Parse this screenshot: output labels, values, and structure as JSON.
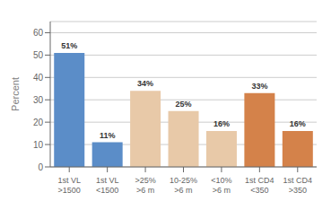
{
  "chart_data": {
    "type": "bar",
    "ylabel": "Percent",
    "categories": [
      "1st VL\n>1500",
      "1st VL\n<1500",
      ">25%\n>6 m",
      "10-25%\n>6 m",
      "<10%\n>6 m",
      "1st CD4\n<350",
      "1st CD4\n>350"
    ],
    "values": [
      51,
      11,
      34,
      25,
      16,
      33,
      16
    ],
    "value_labels": [
      "51%",
      "11%",
      "34%",
      "25%",
      "16%",
      "33%",
      "16%"
    ],
    "colors": [
      "#5b8dc8",
      "#5b8dc8",
      "#e8c9a8",
      "#e8c9a8",
      "#e8c9a8",
      "#d4824a",
      "#d4824a"
    ],
    "ylim": [
      0,
      65
    ],
    "yticks": [
      0,
      10,
      20,
      30,
      40,
      50,
      60
    ],
    "grid": true,
    "data_labels": true
  }
}
